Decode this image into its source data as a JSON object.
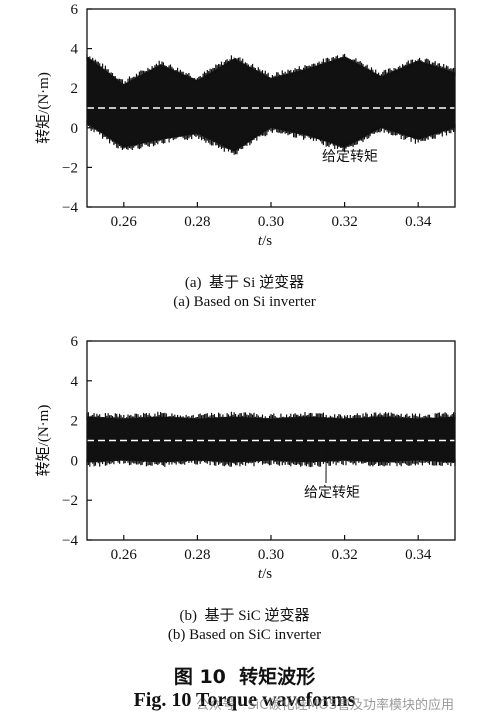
{
  "chart_data": [
    {
      "type": "line",
      "series": [
        {
          "x": [
            0.25,
            0.26,
            0.27,
            0.28,
            0.29,
            0.3,
            0.31,
            0.32,
            0.33,
            0.34,
            0.35
          ],
          "y_min": [
            0.2,
            -1.0,
            -0.6,
            -0.3,
            -1.2,
            0.0,
            -0.4,
            -1.0,
            0.0,
            -0.6,
            0.0
          ],
          "y_max": [
            3.6,
            2.2,
            3.2,
            2.4,
            3.5,
            2.5,
            3.0,
            3.6,
            2.6,
            3.4,
            2.8
          ],
          "color": "#111111"
        },
        {
          "x": [
            0.25,
            0.35
          ],
          "y": [
            1,
            1
          ],
          "style": "dashed",
          "color": "#ffffff"
        }
      ],
      "xlabel_italic": "t",
      "xlabel_unit": "/s",
      "ylabel": "转矩/(N·m)",
      "xlim": [
        0.25,
        0.35
      ],
      "ylim": [
        -4,
        6
      ],
      "xticks": [
        0.26,
        0.28,
        0.3,
        0.32,
        0.34
      ],
      "xtick_labels": [
        "0.26",
        "0.28",
        "0.30",
        "0.32",
        "0.34"
      ],
      "yticks": [
        -4,
        -2,
        0,
        2,
        4,
        6
      ],
      "ytick_labels": [
        "−4",
        "−2",
        "0",
        "2",
        "4",
        "6"
      ],
      "annotation": {
        "text": "给定转矩",
        "x": 0.316,
        "y": 1
      },
      "caption_cn": "(a)  基于 Si 逆变器",
      "caption_en": "(a) Based on Si inverter"
    },
    {
      "type": "line",
      "series": [
        {
          "x": [
            0.25,
            0.26,
            0.27,
            0.28,
            0.29,
            0.3,
            0.31,
            0.32,
            0.33,
            0.34,
            0.35
          ],
          "y_min": [
            -0.1,
            0.0,
            -0.1,
            0.0,
            -0.1,
            0.0,
            -0.1,
            0.0,
            -0.1,
            0.0,
            -0.1
          ],
          "y_max": [
            2.2,
            2.1,
            2.2,
            2.1,
            2.2,
            2.1,
            2.2,
            2.1,
            2.2,
            2.1,
            2.2
          ],
          "color": "#111111"
        },
        {
          "x": [
            0.25,
            0.35
          ],
          "y": [
            1,
            1
          ],
          "style": "dashed",
          "color": "#ffffff"
        }
      ],
      "xlabel_italic": "t",
      "xlabel_unit": "/s",
      "ylabel": "转矩/(N·m)",
      "xlim": [
        0.25,
        0.35
      ],
      "ylim": [
        -4,
        6
      ],
      "xticks": [
        0.26,
        0.28,
        0.3,
        0.32,
        0.34
      ],
      "xtick_labels": [
        "0.26",
        "0.28",
        "0.30",
        "0.32",
        "0.34"
      ],
      "yticks": [
        -4,
        -2,
        0,
        2,
        4,
        6
      ],
      "ytick_labels": [
        "−4",
        "−2",
        "0",
        "2",
        "4",
        "6"
      ],
      "annotation": {
        "text": "给定转矩",
        "x": 0.315,
        "y": 1
      },
      "caption_cn": "(b)  基于 SiC 逆变器",
      "caption_en": "(b) Based on SiC inverter"
    }
  ],
  "figure": {
    "title_cn": "图 10  转矩波形",
    "title_en": "Fig. 10 Torque waveforms"
  },
  "watermark": "公众号 · SiC碳化硅MOS管及功率模块的应用"
}
